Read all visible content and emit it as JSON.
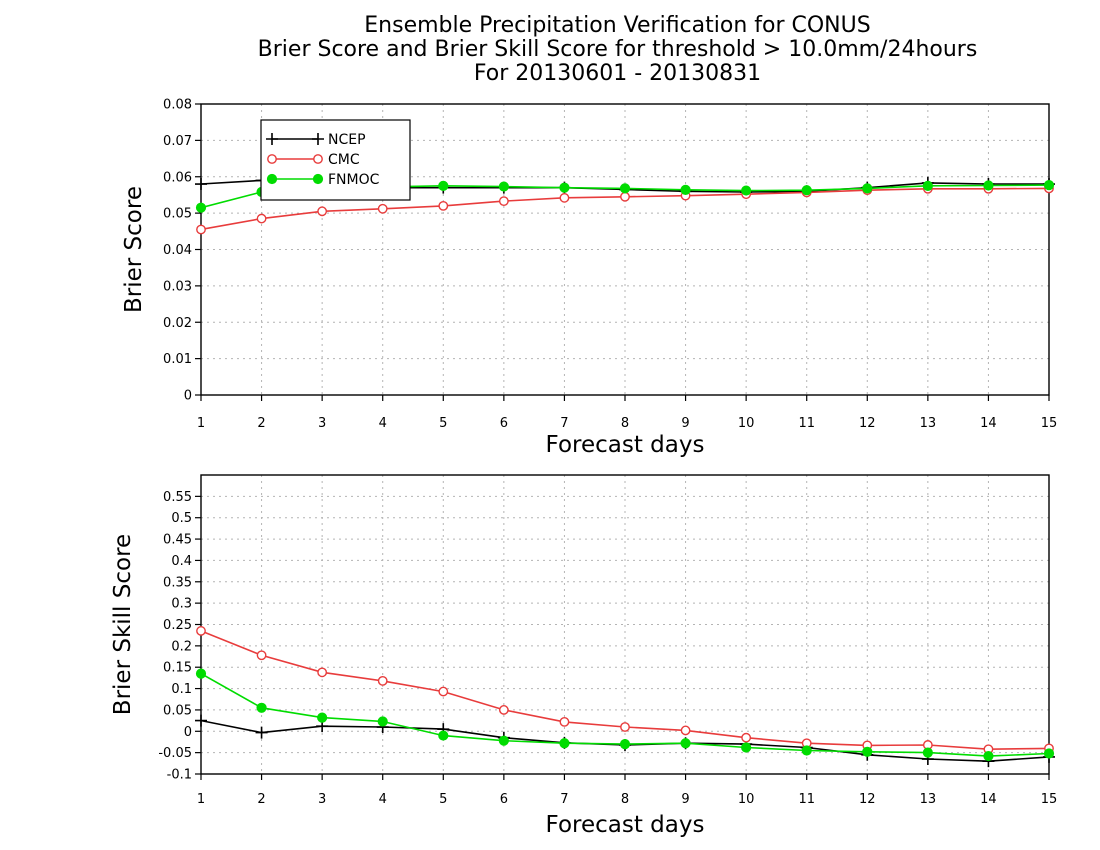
{
  "titles": {
    "line1": "Ensemble Precipitation Verification for CONUS",
    "line2": "Brier Score and Brier Skill Score for threshold > 10.0mm/24hours",
    "line3": "For 20130601 - 20130831"
  },
  "colors": {
    "NCEP": "#000000",
    "CMC": "#e83c3c",
    "FNMOC": "#00dc00",
    "grid": "#b4b4b4"
  },
  "chart_data": [
    {
      "type": "line",
      "xlabel": "Forecast days",
      "ylabel": "Brier Score",
      "x": [
        1,
        2,
        3,
        4,
        5,
        6,
        7,
        8,
        9,
        10,
        11,
        12,
        13,
        14,
        15
      ],
      "xlim": [
        1,
        15
      ],
      "ylim": [
        0,
        0.08
      ],
      "yticks": [
        0,
        0.01,
        0.02,
        0.03,
        0.04,
        0.05,
        0.06,
        0.07,
        0.08
      ],
      "ytick_labels": [
        "0",
        "0.01",
        "0.02",
        "0.03",
        "0.04",
        "0.05",
        "0.06",
        "0.07",
        "0.08"
      ],
      "grid": true,
      "legend": "top-left",
      "series": [
        {
          "name": "NCEP",
          "marker": "plus",
          "values": [
            0.058,
            0.059,
            0.058,
            0.057,
            0.057,
            0.057,
            0.057,
            0.0565,
            0.056,
            0.0558,
            0.056,
            0.057,
            0.0583,
            0.058,
            0.058
          ]
        },
        {
          "name": "CMC",
          "marker": "open-circle",
          "values": [
            0.0455,
            0.0485,
            0.0505,
            0.0512,
            0.052,
            0.0533,
            0.0542,
            0.0545,
            0.0548,
            0.0552,
            0.0557,
            0.0563,
            0.0567,
            0.0567,
            0.0568
          ]
        },
        {
          "name": "FNMOC",
          "marker": "filled-circle",
          "values": [
            0.0515,
            0.0558,
            0.057,
            0.0572,
            0.0575,
            0.0573,
            0.057,
            0.0568,
            0.0564,
            0.0562,
            0.0563,
            0.0568,
            0.0575,
            0.0576,
            0.0577
          ]
        }
      ]
    },
    {
      "type": "line",
      "xlabel": "Forecast days",
      "ylabel": "Brier Skill Score",
      "x": [
        1,
        2,
        3,
        4,
        5,
        6,
        7,
        8,
        9,
        10,
        11,
        12,
        13,
        14,
        15
      ],
      "xlim": [
        1,
        15
      ],
      "ylim": [
        -0.1,
        0.6
      ],
      "yticks": [
        -0.1,
        -0.05,
        0,
        0.05,
        0.1,
        0.15,
        0.2,
        0.25,
        0.3,
        0.35,
        0.4,
        0.45,
        0.5,
        0.55
      ],
      "ytick_labels": [
        "-0.1",
        "-0.05",
        "0",
        "0.05",
        "0.1",
        "0.15",
        "0.2",
        "0.25",
        "0.3",
        "0.35",
        "0.4",
        "0.45",
        "0.5",
        "0.55"
      ],
      "grid": true,
      "series": [
        {
          "name": "NCEP",
          "marker": "plus",
          "values": [
            0.025,
            -0.003,
            0.012,
            0.01,
            0.005,
            -0.015,
            -0.027,
            -0.032,
            -0.028,
            -0.03,
            -0.038,
            -0.055,
            -0.065,
            -0.07,
            -0.06
          ]
        },
        {
          "name": "CMC",
          "marker": "open-circle",
          "values": [
            0.235,
            0.178,
            0.138,
            0.118,
            0.093,
            0.05,
            0.022,
            0.01,
            0.002,
            -0.015,
            -0.028,
            -0.033,
            -0.032,
            -0.042,
            -0.04
          ]
        },
        {
          "name": "FNMOC",
          "marker": "filled-circle",
          "values": [
            0.135,
            0.055,
            0.032,
            0.023,
            -0.01,
            -0.022,
            -0.028,
            -0.03,
            -0.028,
            -0.038,
            -0.045,
            -0.048,
            -0.05,
            -0.058,
            -0.052
          ]
        }
      ]
    }
  ]
}
